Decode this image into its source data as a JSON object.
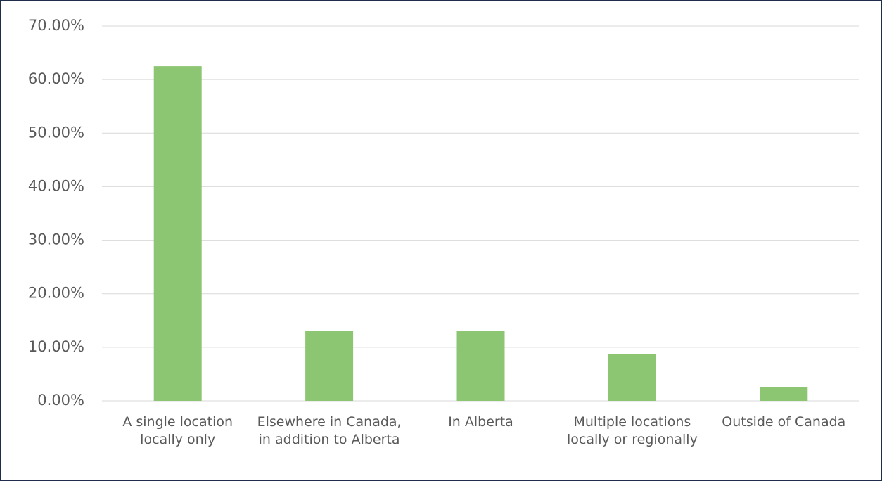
{
  "chart_data": {
    "type": "bar",
    "categories": [
      "A single location locally only",
      "Elsewhere in Canada, in addition to Alberta",
      "In Alberta",
      "Multiple locations locally or regionally",
      "Outside of Canada"
    ],
    "values": [
      62.5,
      13.1,
      13.1,
      8.8,
      2.5
    ],
    "color": "#8dc672",
    "ylim": [
      0,
      70
    ],
    "yticks": [
      {
        "value": 0,
        "label": "0.00%"
      },
      {
        "value": 10,
        "label": "10.00%"
      },
      {
        "value": 20,
        "label": "20.00%"
      },
      {
        "value": 30,
        "label": "30.00%"
      },
      {
        "value": 40,
        "label": "40.00%"
      },
      {
        "value": 50,
        "label": "50.00%"
      },
      {
        "value": 60,
        "label": "60.00%"
      },
      {
        "value": 70,
        "label": "70.00%"
      }
    ],
    "grid": true
  }
}
